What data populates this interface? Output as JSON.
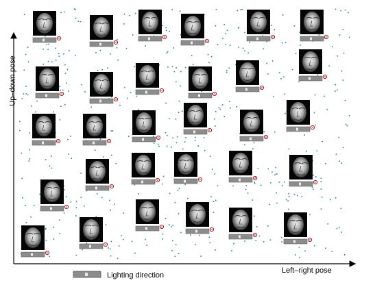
{
  "xaxis": {
    "label": "Left–right pose"
  },
  "yaxis": {
    "label": "Up–down pose"
  },
  "legend": {
    "label": "Lighting direction"
  },
  "colors": {
    "scatter": "#1a8a9a",
    "marker": "#b01820",
    "bar": "#8c8c8c",
    "axis": "#000000"
  }
}
